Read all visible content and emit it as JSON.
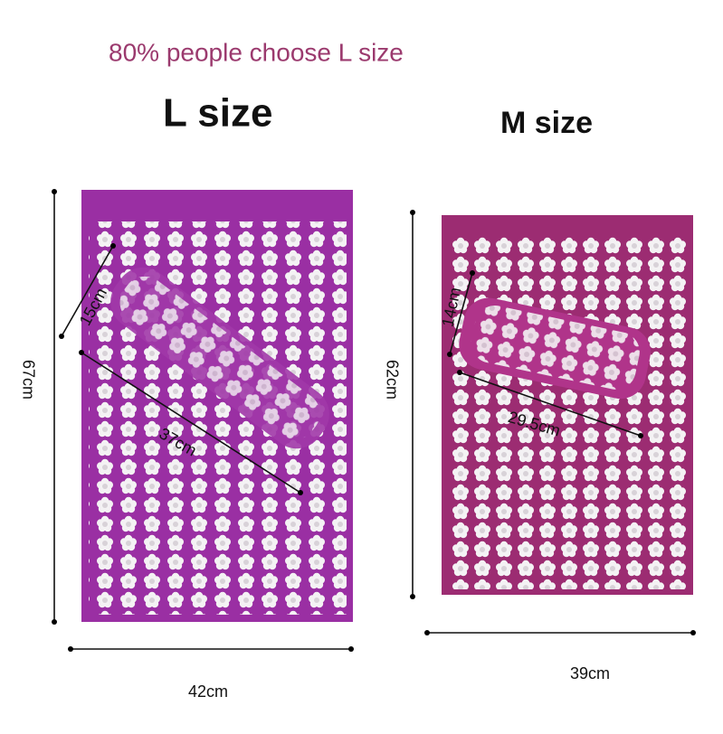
{
  "headline": "80% people choose L size",
  "sizes": [
    {
      "title": "L size",
      "height": "67cm",
      "width": "42cm",
      "pillow_width": "15cm",
      "pillow_length": "37cm"
    },
    {
      "title": "M size",
      "height": "62cm",
      "width": "39cm",
      "pillow_width": "14cm",
      "pillow_length": "29.5cm"
    }
  ]
}
